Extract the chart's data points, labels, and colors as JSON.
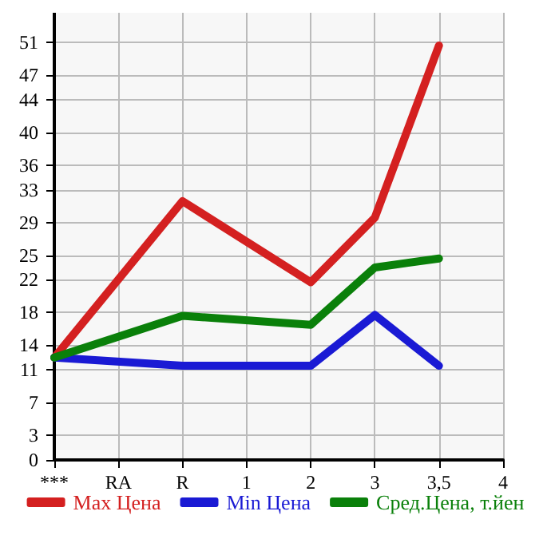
{
  "chart_data": {
    "type": "line",
    "categories": [
      "***",
      "RA",
      "R",
      "1",
      "2",
      "3",
      "3,5",
      "4"
    ],
    "series": [
      {
        "name": "Max Цена",
        "color": "#d42020",
        "values": [
          12.5,
          null,
          31.6,
          null,
          21.7,
          29.6,
          50.6,
          null
        ]
      },
      {
        "name": "Min Цена",
        "color": "#1a1ad4",
        "values": [
          12.5,
          null,
          11.5,
          null,
          11.5,
          17.7,
          11.5,
          null
        ]
      },
      {
        "name": "Сред.Цена, т.йен",
        "color": "#0a800a",
        "values": [
          12.5,
          null,
          17.6,
          null,
          16.5,
          23.5,
          24.6,
          null
        ]
      }
    ],
    "ylim": [
      0,
      54.6
    ],
    "yticks": [
      0,
      3,
      7,
      11,
      14,
      18,
      22,
      25,
      29,
      33,
      36,
      40,
      44,
      47,
      51
    ],
    "grid": true,
    "legend": "bottom",
    "marker": "none",
    "line_style": "solid"
  }
}
